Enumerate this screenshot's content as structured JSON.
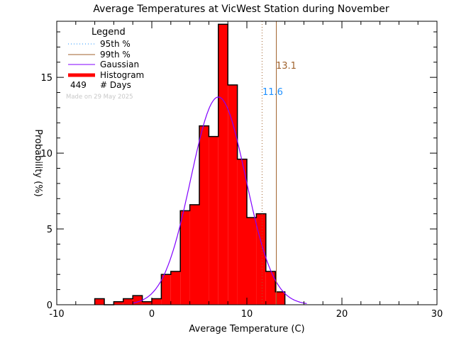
{
  "chart_data": {
    "type": "bar",
    "title": "Average Temperatures at VicWest Station during November",
    "xlabel": "Average Temperature (C)",
    "ylabel": "Probability (%)",
    "xlim": [
      -10,
      30
    ],
    "ylim": [
      0,
      18.7
    ],
    "xticks": [
      -10,
      0,
      10,
      20,
      30
    ],
    "yticks": [
      0,
      5,
      10,
      15
    ],
    "bin_width": 1,
    "bins_start": [
      -6,
      -5,
      -4,
      -3,
      -2,
      -1,
      0,
      1,
      2,
      3,
      4,
      5,
      6,
      7,
      8,
      9,
      10,
      11,
      12,
      13
    ],
    "values": [
      0.4,
      0,
      0.2,
      0.4,
      0.6,
      0.2,
      0.4,
      2.0,
      2.2,
      6.2,
      6.6,
      11.8,
      11.1,
      18.5,
      14.5,
      9.6,
      5.75,
      6.0,
      2.2,
      0.85
    ],
    "gaussian": {
      "mean": 7.0,
      "sigma": 2.9,
      "peak": 13.7
    },
    "p95": {
      "value": 11.6,
      "label": "11.6"
    },
    "p99": {
      "value": 13.1,
      "label": "13.1"
    },
    "legend": {
      "title": "Legend",
      "items": [
        "95th %",
        "99th %",
        "Gaussian",
        "Histogram"
      ],
      "days_count": "449",
      "days_label": "# Days",
      "made_on": "Made on 29 May 2025",
      "placement": "top-left"
    },
    "colors": {
      "histogram": "#ff0000",
      "gaussian": "#8000ff",
      "p95": "#1e90ff",
      "p99": "#a0622d"
    }
  }
}
